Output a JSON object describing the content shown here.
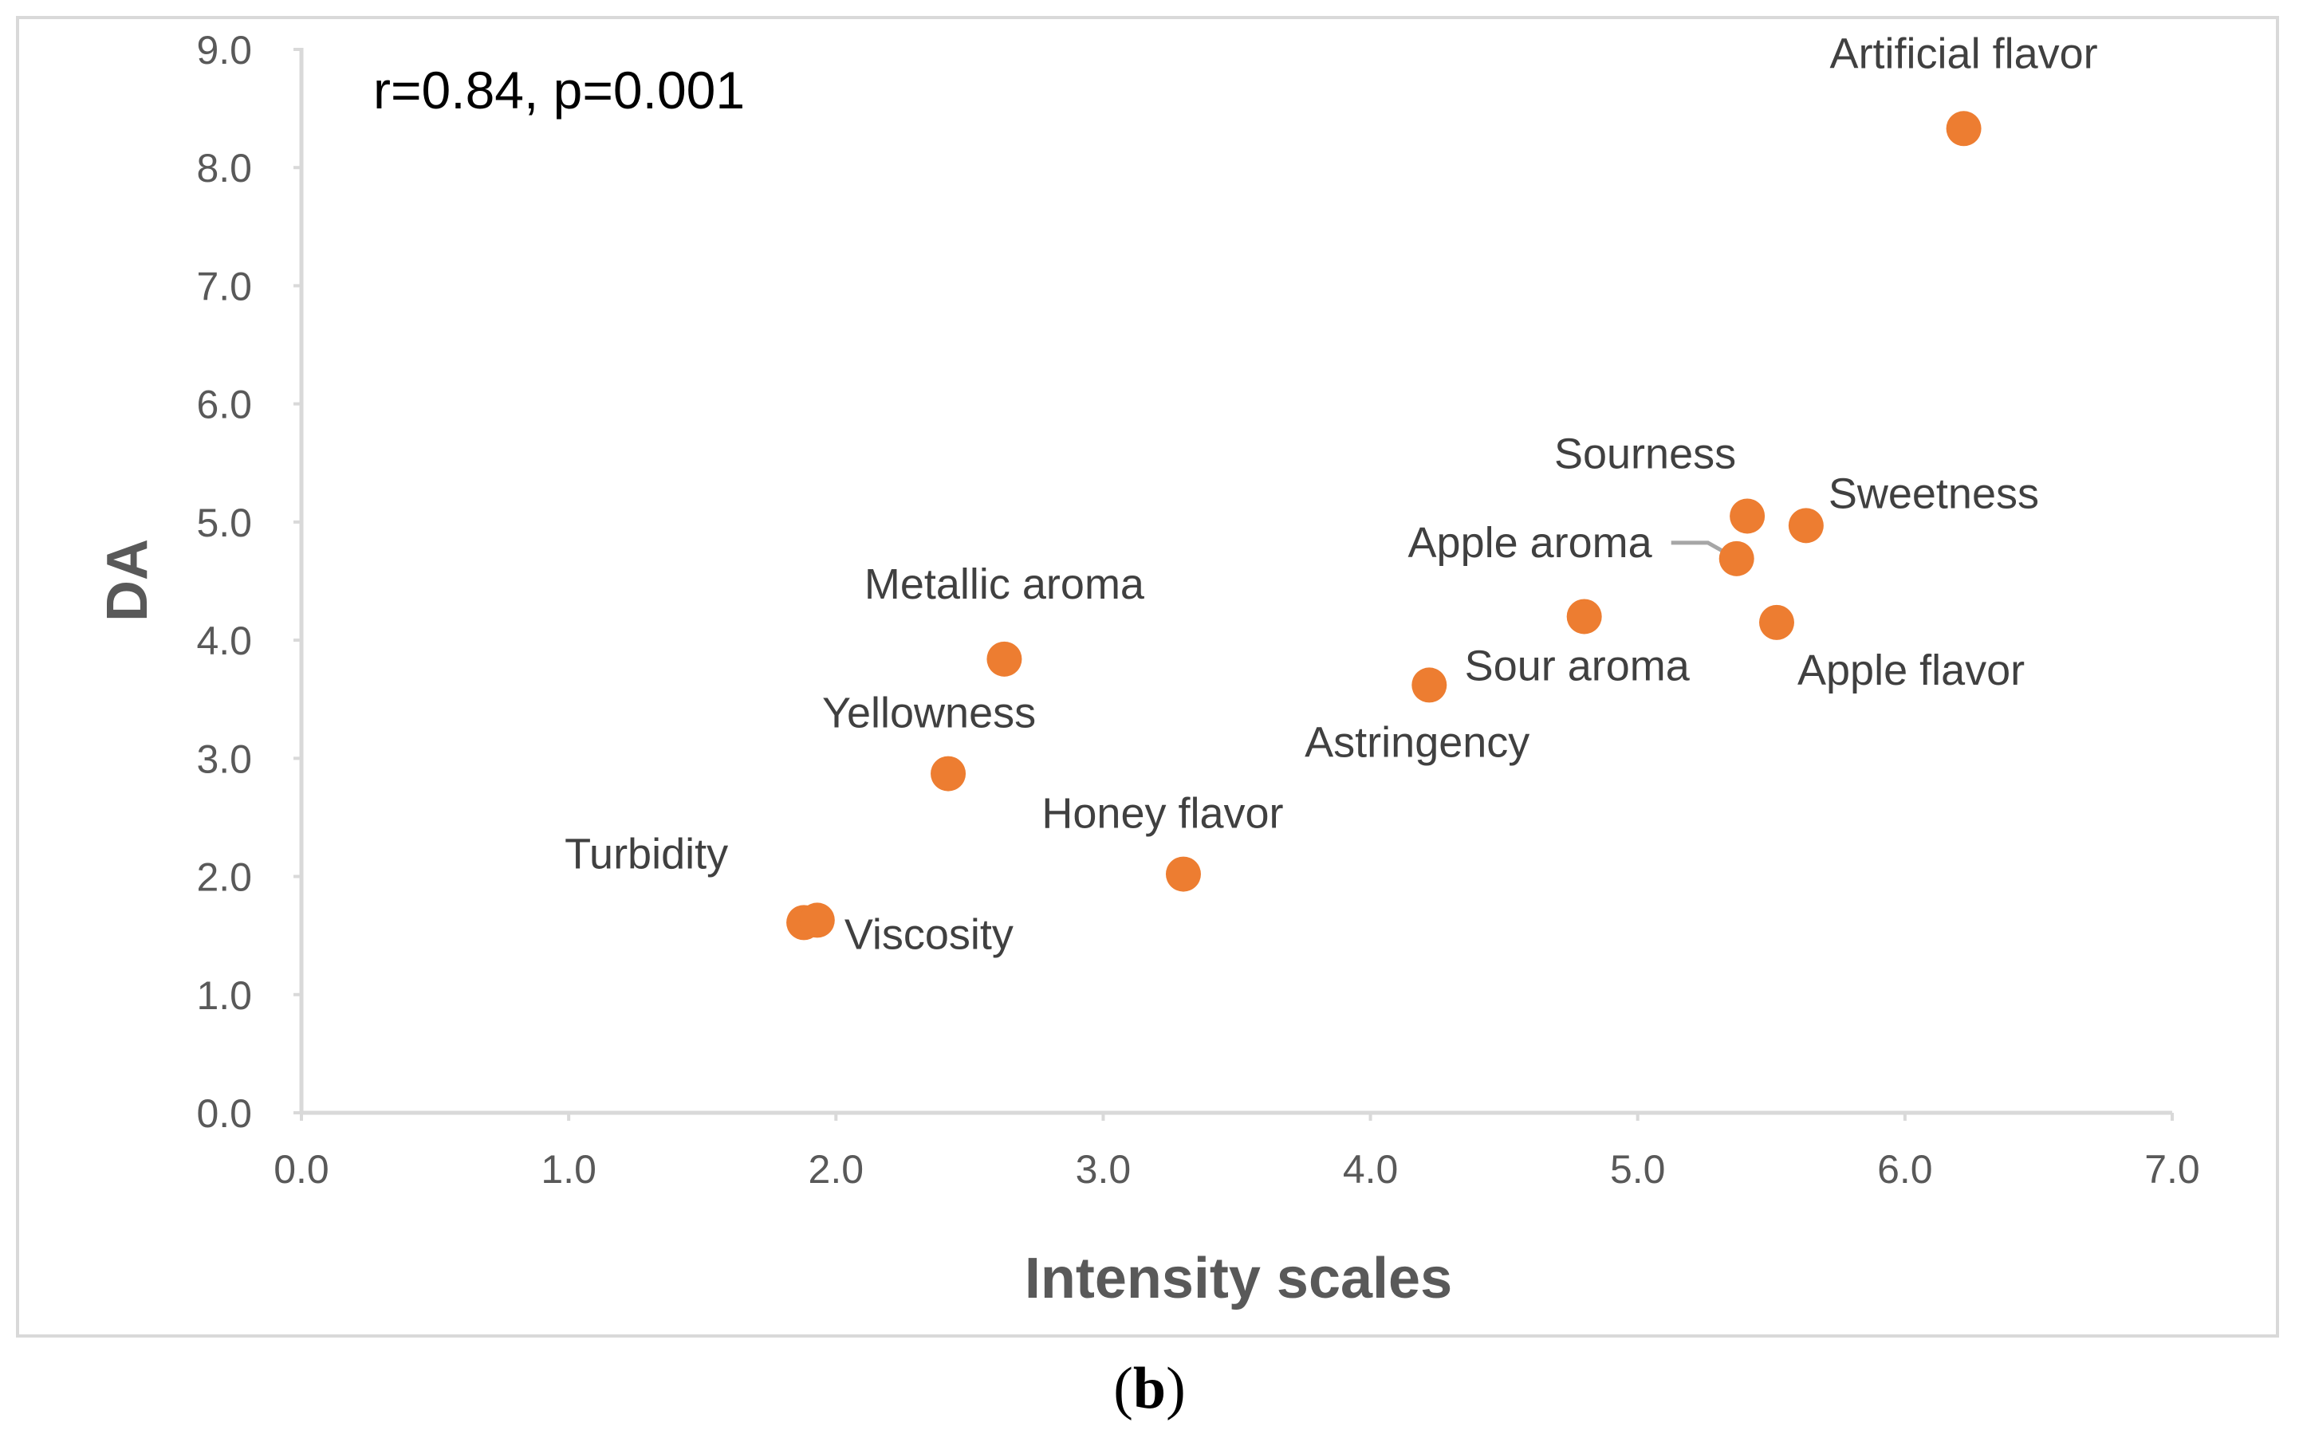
{
  "chart_data": {
    "type": "scatter",
    "title": "",
    "annotation": "r=0.84, p=0.001",
    "xlabel": "Intensity scales",
    "ylabel": "DA",
    "xlim": [
      0,
      7
    ],
    "ylim": [
      0,
      9
    ],
    "x_ticks": [
      "0.0",
      "1.0",
      "2.0",
      "3.0",
      "4.0",
      "5.0",
      "6.0",
      "7.0"
    ],
    "y_ticks": [
      "0.0",
      "1.0",
      "2.0",
      "3.0",
      "4.0",
      "5.0",
      "6.0",
      "7.0",
      "8.0",
      "9.0"
    ],
    "grid": false,
    "marker_color": "#ED7D31",
    "points": [
      {
        "label": "Artificial flavor",
        "x": 6.22,
        "y": 8.33
      },
      {
        "label": "Sourness",
        "x": 5.41,
        "y": 5.05
      },
      {
        "label": "Sweetness",
        "x": 5.63,
        "y": 4.97
      },
      {
        "label": "Apple aroma",
        "x": 5.37,
        "y": 4.69
      },
      {
        "label": "Apple flavor",
        "x": 5.52,
        "y": 4.15
      },
      {
        "label": "Sour aroma",
        "x": 4.8,
        "y": 4.2
      },
      {
        "label": "Astringency",
        "x": 4.22,
        "y": 3.62
      },
      {
        "label": "Metallic aroma",
        "x": 2.63,
        "y": 3.84
      },
      {
        "label": "Yellowness",
        "x": 2.42,
        "y": 2.87
      },
      {
        "label": "Honey flavor",
        "x": 3.3,
        "y": 2.02
      },
      {
        "label": "Turbidity",
        "x": 1.88,
        "y": 1.61
      },
      {
        "label": "Viscosity",
        "x": 1.93,
        "y": 1.63
      }
    ]
  },
  "caption": {
    "open": "(",
    "letter": "b",
    "close": ")"
  }
}
